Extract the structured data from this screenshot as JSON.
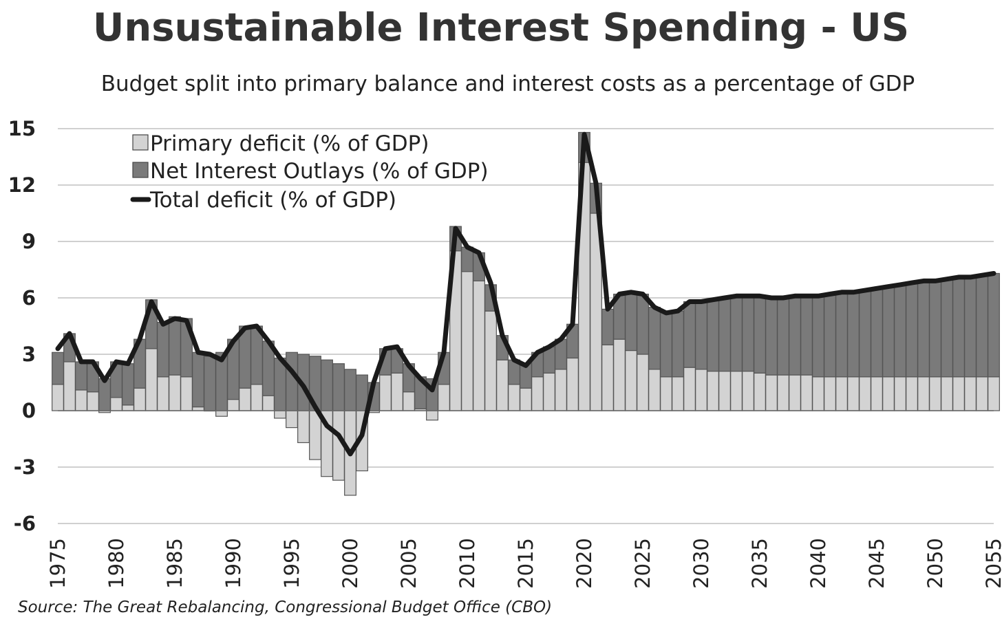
{
  "chart_data": {
    "type": "bar",
    "title": "Unsustainable Interest Spending - US",
    "subtitle": "Budget split into primary balance and interest costs as a percentage of GDP",
    "source": "Source: The Great Rebalancing, Congressional Budget Office (CBO)",
    "xlabel": "",
    "ylabel": "",
    "ylim": [
      -6,
      15
    ],
    "yticks": [
      15,
      12,
      9,
      6,
      3,
      0,
      -3,
      -6
    ],
    "xtick_labels": [
      "1975",
      "1980",
      "1985",
      "1990",
      "1995",
      "2000",
      "2005",
      "2010",
      "2015",
      "2020",
      "2025",
      "2030",
      "2035",
      "2040",
      "2045",
      "2050",
      "2055"
    ],
    "grid": true,
    "legend_position": "top-left",
    "stacked": true,
    "years": [
      1975,
      1976,
      1977,
      1978,
      1979,
      1980,
      1981,
      1982,
      1983,
      1984,
      1985,
      1986,
      1987,
      1988,
      1989,
      1990,
      1991,
      1992,
      1993,
      1994,
      1995,
      1996,
      1997,
      1998,
      1999,
      2000,
      2001,
      2002,
      2003,
      2004,
      2005,
      2006,
      2007,
      2008,
      2009,
      2010,
      2011,
      2012,
      2013,
      2014,
      2015,
      2016,
      2017,
      2018,
      2019,
      2020,
      2021,
      2022,
      2023,
      2024,
      2025,
      2026,
      2027,
      2028,
      2029,
      2030,
      2031,
      2032,
      2033,
      2034,
      2035,
      2036,
      2037,
      2038,
      2039,
      2040,
      2041,
      2042,
      2043,
      2044,
      2045,
      2046,
      2047,
      2048,
      2049,
      2050,
      2051,
      2052,
      2053,
      2054,
      2055
    ],
    "series": [
      {
        "name": "Primary deficit (% of GDP)",
        "kind": "bar",
        "color": "#d3d3d3",
        "values": [
          1.4,
          2.6,
          1.1,
          1.0,
          -0.1,
          0.7,
          0.3,
          1.2,
          3.3,
          1.8,
          1.9,
          1.8,
          0.2,
          0.0,
          -0.3,
          0.6,
          1.2,
          1.4,
          0.8,
          -0.4,
          -0.9,
          -1.7,
          -2.6,
          -3.5,
          -3.7,
          -4.5,
          -3.2,
          -0.1,
          1.9,
          2.0,
          1.0,
          0.1,
          -0.5,
          1.4,
          8.5,
          7.4,
          6.9,
          5.3,
          2.7,
          1.4,
          1.2,
          1.8,
          2.0,
          2.2,
          2.8,
          13.2,
          10.5,
          3.5,
          3.8,
          3.2,
          3.0,
          2.2,
          1.8,
          1.8,
          2.3,
          2.2,
          2.1,
          2.1,
          2.1,
          2.1,
          2.0,
          1.9,
          1.9,
          1.9,
          1.9,
          1.8,
          1.8,
          1.8,
          1.8,
          1.8,
          1.8,
          1.8,
          1.8,
          1.8,
          1.8,
          1.8,
          1.8,
          1.8,
          1.8,
          1.8,
          1.8
        ]
      },
      {
        "name": "Net Interest Outlays (% of GDP)",
        "kind": "bar",
        "color": "#7a7a7a",
        "values": [
          1.7,
          1.5,
          1.5,
          1.6,
          1.7,
          1.9,
          2.2,
          2.6,
          2.6,
          2.9,
          3.1,
          3.1,
          2.9,
          2.9,
          3.1,
          3.2,
          3.3,
          3.1,
          2.9,
          2.8,
          3.1,
          3.0,
          2.9,
          2.7,
          2.5,
          2.2,
          1.9,
          1.5,
          1.4,
          1.3,
          1.5,
          1.7,
          1.7,
          1.7,
          1.3,
          1.3,
          1.5,
          1.4,
          1.3,
          1.3,
          1.3,
          1.3,
          1.4,
          1.6,
          1.8,
          1.6,
          1.6,
          1.9,
          2.4,
          3.1,
          3.2,
          3.3,
          3.4,
          3.5,
          3.5,
          3.6,
          3.8,
          3.9,
          4.0,
          4.0,
          4.1,
          4.1,
          4.1,
          4.2,
          4.2,
          4.3,
          4.4,
          4.5,
          4.5,
          4.6,
          4.7,
          4.8,
          4.9,
          5.0,
          5.1,
          5.1,
          5.2,
          5.3,
          5.3,
          5.4,
          5.5
        ]
      },
      {
        "name": "Total deficit (% of GDP)",
        "kind": "line",
        "color": "#1a1a1a",
        "values": [
          3.3,
          4.1,
          2.6,
          2.6,
          1.6,
          2.6,
          2.5,
          3.8,
          5.8,
          4.6,
          4.9,
          4.8,
          3.1,
          3.0,
          2.7,
          3.7,
          4.4,
          4.5,
          3.7,
          2.8,
          2.1,
          1.3,
          0.2,
          -0.8,
          -1.3,
          -2.3,
          -1.3,
          1.5,
          3.3,
          3.4,
          2.4,
          1.7,
          1.1,
          3.1,
          9.7,
          8.7,
          8.4,
          6.8,
          4.0,
          2.7,
          2.4,
          3.1,
          3.4,
          3.8,
          4.6,
          14.7,
          12.1,
          5.4,
          6.2,
          6.3,
          6.2,
          5.5,
          5.2,
          5.3,
          5.8,
          5.8,
          5.9,
          6.0,
          6.1,
          6.1,
          6.1,
          6.0,
          6.0,
          6.1,
          6.1,
          6.1,
          6.2,
          6.3,
          6.3,
          6.4,
          6.5,
          6.6,
          6.7,
          6.8,
          6.9,
          6.9,
          7.0,
          7.1,
          7.1,
          7.2,
          7.3
        ]
      }
    ]
  }
}
